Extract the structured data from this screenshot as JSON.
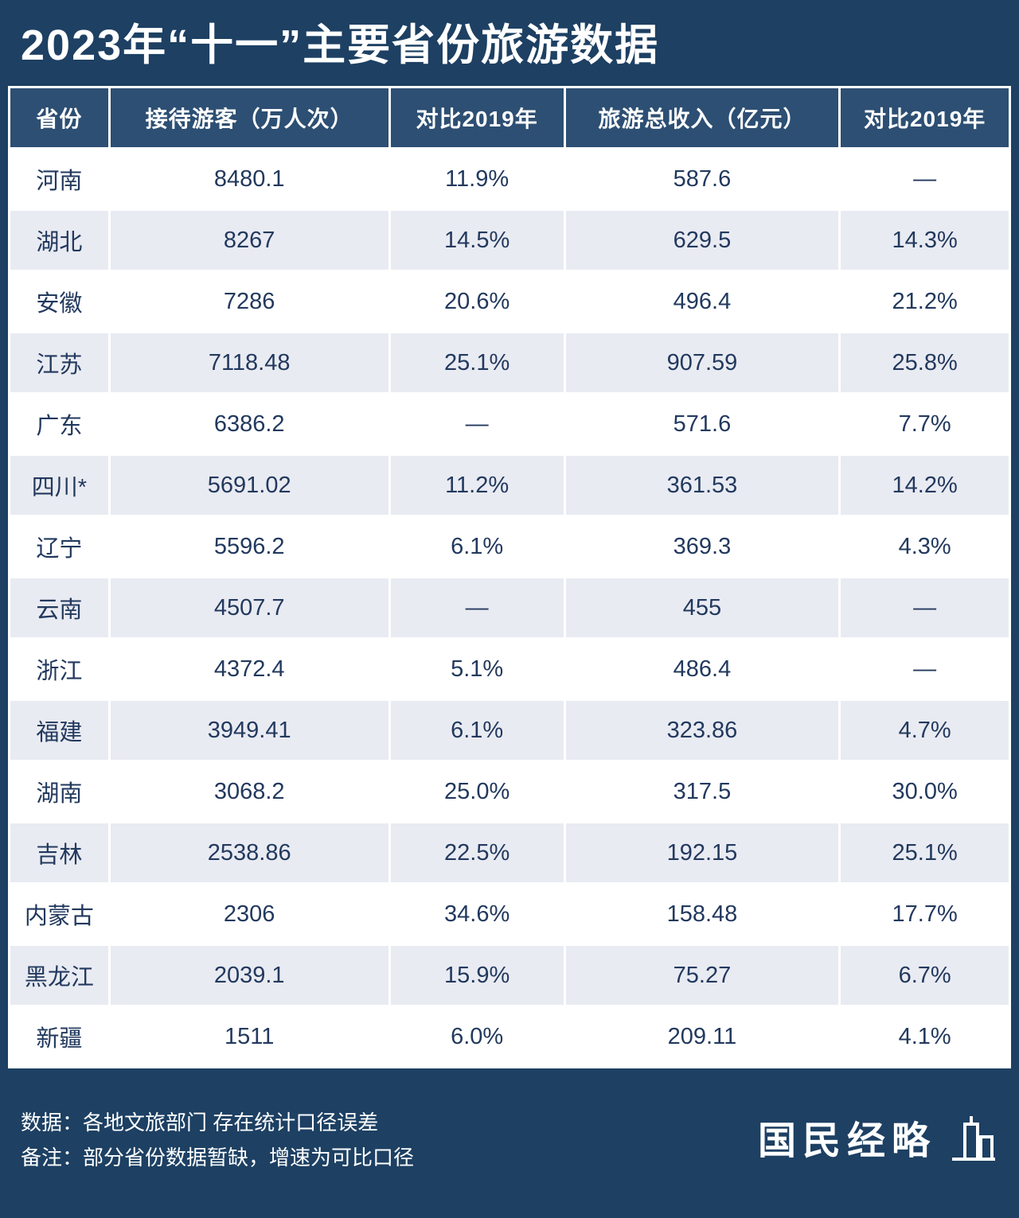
{
  "title": "2023年“十一”主要省份旅游数据",
  "chart_data": {
    "type": "table",
    "title": "2023年“十一”主要省份旅游数据",
    "columns": [
      "省份",
      "接待游客（万人次）",
      "对比2019年",
      "旅游总收入（亿元）",
      "对比2019年"
    ],
    "rows": [
      [
        "河南",
        "8480.1",
        "11.9%",
        "587.6",
        "—"
      ],
      [
        "湖北",
        "8267",
        "14.5%",
        "629.5",
        "14.3%"
      ],
      [
        "安徽",
        "7286",
        "20.6%",
        "496.4",
        "21.2%"
      ],
      [
        "江苏",
        "7118.48",
        "25.1%",
        "907.59",
        "25.8%"
      ],
      [
        "广东",
        "6386.2",
        "—",
        "571.6",
        "7.7%"
      ],
      [
        "四川*",
        "5691.02",
        "11.2%",
        "361.53",
        "14.2%"
      ],
      [
        "辽宁",
        "5596.2",
        "6.1%",
        "369.3",
        "4.3%"
      ],
      [
        "云南",
        "4507.7",
        "—",
        "455",
        "—"
      ],
      [
        "浙江",
        "4372.4",
        "5.1%",
        "486.4",
        "—"
      ],
      [
        "福建",
        "3949.41",
        "6.1%",
        "323.86",
        "4.7%"
      ],
      [
        "湖南",
        "3068.2",
        "25.0%",
        "317.5",
        "30.0%"
      ],
      [
        "吉林",
        "2538.86",
        "22.5%",
        "192.15",
        "25.1%"
      ],
      [
        "内蒙古",
        "2306",
        "34.6%",
        "158.48",
        "17.7%"
      ],
      [
        "黑龙江",
        "2039.1",
        "15.9%",
        "75.27",
        "6.7%"
      ],
      [
        "新疆",
        "1511",
        "6.0%",
        "209.11",
        "4.1%"
      ]
    ]
  },
  "footer": {
    "source": "数据：各地文旅部门 存在统计口径误差",
    "note": "备注：部分省份数据暂缺，增速为可比口径",
    "brand": "国民经略"
  },
  "colors": {
    "page_background": "#1d4063",
    "header_background": "#2d4f73",
    "row_background": "#ffffff",
    "row_alt_background": "#e9ebf2",
    "cell_text": "#22395e",
    "header_text": "#ffffff"
  }
}
